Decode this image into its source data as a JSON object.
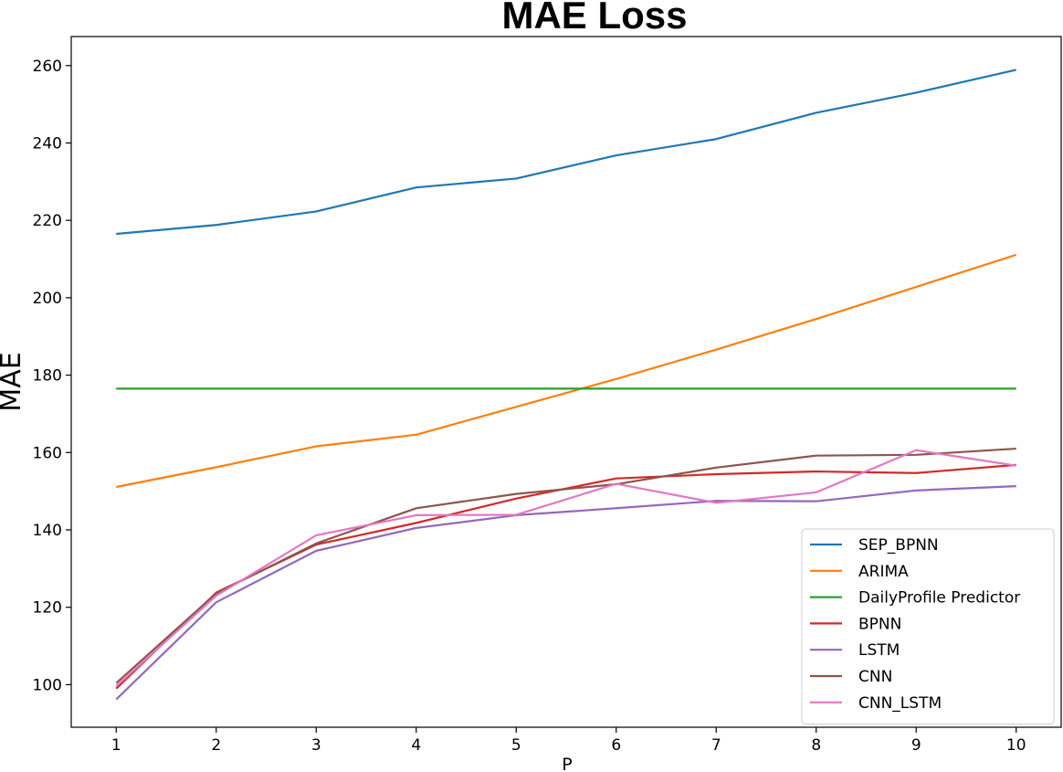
{
  "chart_data": {
    "type": "line",
    "title": "MAE Loss",
    "xlabel": "P",
    "ylabel": "MAE",
    "x": [
      1,
      2,
      3,
      4,
      5,
      6,
      7,
      8,
      9,
      10
    ],
    "xlim": [
      0.55,
      10.45
    ],
    "ylim": [
      89,
      267.5
    ],
    "xticks": [
      1,
      2,
      3,
      4,
      5,
      6,
      7,
      8,
      9,
      10
    ],
    "yticks": [
      100,
      120,
      140,
      160,
      180,
      200,
      220,
      240,
      260
    ],
    "grid": false,
    "legend_position": "lower right",
    "series": [
      {
        "name": "SEP_BPNN",
        "color": "#1f77b4",
        "values": [
          216.5,
          218.8,
          222.3,
          228.5,
          230.8,
          236.8,
          241.0,
          247.8,
          253.0,
          258.9
        ]
      },
      {
        "name": "ARIMA",
        "color": "#ff7f0e",
        "values": [
          151.1,
          156.2,
          161.6,
          164.6,
          171.8,
          179.0,
          186.6,
          194.5,
          202.8,
          211.1
        ]
      },
      {
        "name": "DailyProfile Predictor",
        "color": "#2ca02c",
        "values": [
          176.5,
          176.5,
          176.5,
          176.5,
          176.5,
          176.5,
          176.5,
          176.5,
          176.5,
          176.5
        ]
      },
      {
        "name": "BPNN",
        "color": "#d62728",
        "values": [
          99.0,
          123.8,
          136.2,
          141.8,
          148.1,
          153.3,
          154.4,
          155.1,
          154.7,
          156.8
        ]
      },
      {
        "name": "LSTM",
        "color": "#9467bd",
        "values": [
          96.2,
          121.3,
          134.6,
          140.5,
          143.8,
          145.6,
          147.5,
          147.4,
          150.2,
          151.3
        ]
      },
      {
        "name": "CNN",
        "color": "#8c564b",
        "values": [
          100.4,
          123.6,
          136.5,
          145.6,
          149.3,
          151.8,
          156.1,
          159.2,
          159.4,
          161.0
        ]
      },
      {
        "name": "CNN_LSTM",
        "color": "#e377c2",
        "values": [
          99.6,
          123.0,
          138.6,
          143.8,
          143.9,
          151.9,
          147.0,
          149.7,
          160.6,
          156.6
        ]
      }
    ]
  }
}
